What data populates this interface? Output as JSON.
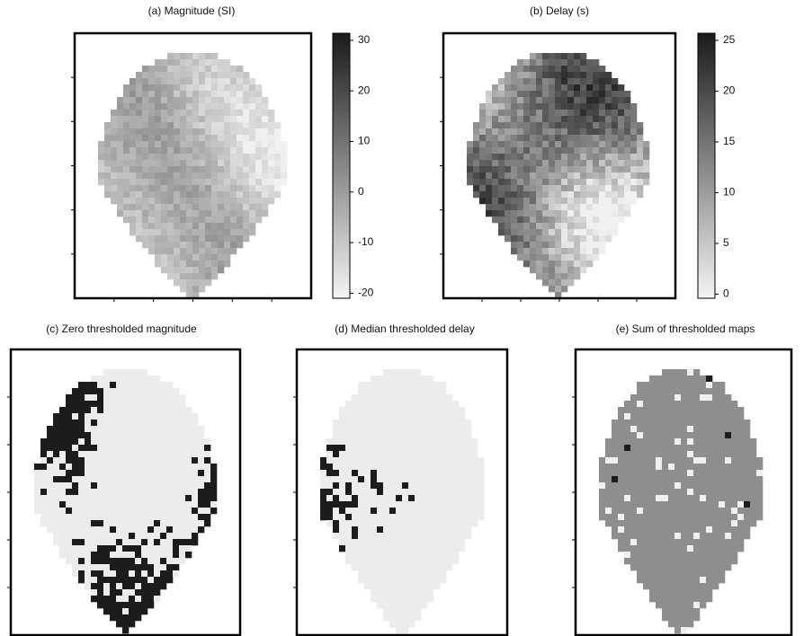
{
  "panels": [
    {
      "title": "(a) Magnitude (SI)",
      "colorbar": {
        "lim": [
          -21,
          31.4
        ],
        "ticks": [
          30,
          20,
          10,
          0,
          -10,
          -20
        ]
      }
    },
    {
      "title": "(b) Delay (s)",
      "colorbar": {
        "lim": [
          -0.4,
          25.7
        ],
        "ticks": [
          25,
          20,
          15,
          10,
          5,
          0
        ]
      }
    },
    {
      "title": "(c) Zero thresholded magnitude"
    },
    {
      "title": "(d) Median thresholded delay"
    },
    {
      "title": "(e) Sum of thresholded maps"
    }
  ]
}
